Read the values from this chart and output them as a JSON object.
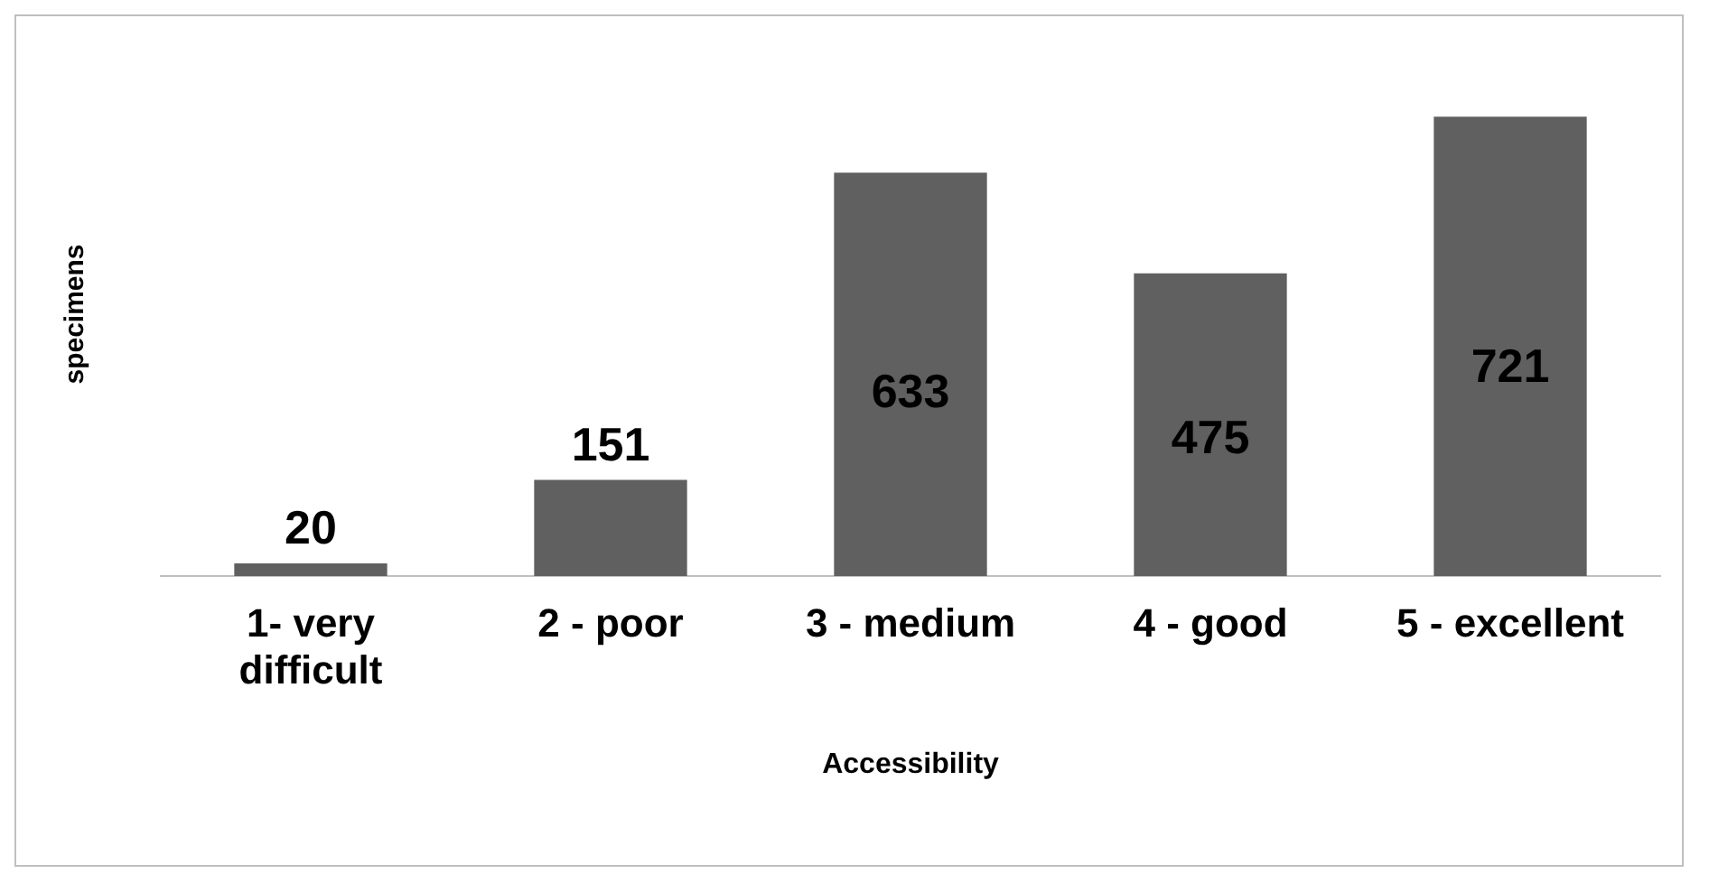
{
  "chart_data": {
    "type": "bar",
    "xlabel": "Accessibility",
    "ylabel": "specimens",
    "categories": [
      "1- very difficult",
      "2 - poor",
      "3 - medium",
      "4 - good",
      "5 - excellent"
    ],
    "values": [
      20,
      151,
      633,
      475,
      721
    ],
    "color": "#606060",
    "data_labels": true,
    "grid": false,
    "legend": false
  }
}
